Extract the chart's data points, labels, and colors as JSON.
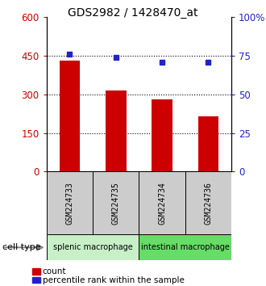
{
  "title": "GDS2982 / 1428470_at",
  "samples": [
    "GSM224733",
    "GSM224735",
    "GSM224734",
    "GSM224736"
  ],
  "counts": [
    430,
    315,
    280,
    215
  ],
  "percentiles": [
    76,
    74,
    71,
    71
  ],
  "ylim_left": [
    0,
    600
  ],
  "ylim_right": [
    0,
    100
  ],
  "yticks_left": [
    0,
    150,
    300,
    450,
    600
  ],
  "yticks_right": [
    0,
    25,
    50,
    75,
    100
  ],
  "ytick_labels_left": [
    "0",
    "150",
    "300",
    "450",
    "600"
  ],
  "ytick_labels_right": [
    "0",
    "25",
    "50",
    "75",
    "100%"
  ],
  "bar_color": "#cc0000",
  "dot_color": "#2222cc",
  "cell_types": [
    {
      "label": "splenic macrophage",
      "samples": [
        0,
        1
      ],
      "color": "#c8f0c8"
    },
    {
      "label": "intestinal macrophage",
      "samples": [
        2,
        3
      ],
      "color": "#66dd66"
    }
  ],
  "cell_type_label": "cell type",
  "legend_count_label": "count",
  "legend_percentile_label": "percentile rank within the sample",
  "grid_color": "#000000",
  "sample_box_color": "#cccccc",
  "background_color": "#ffffff",
  "dotted_gridlines": [
    150,
    300,
    450
  ]
}
